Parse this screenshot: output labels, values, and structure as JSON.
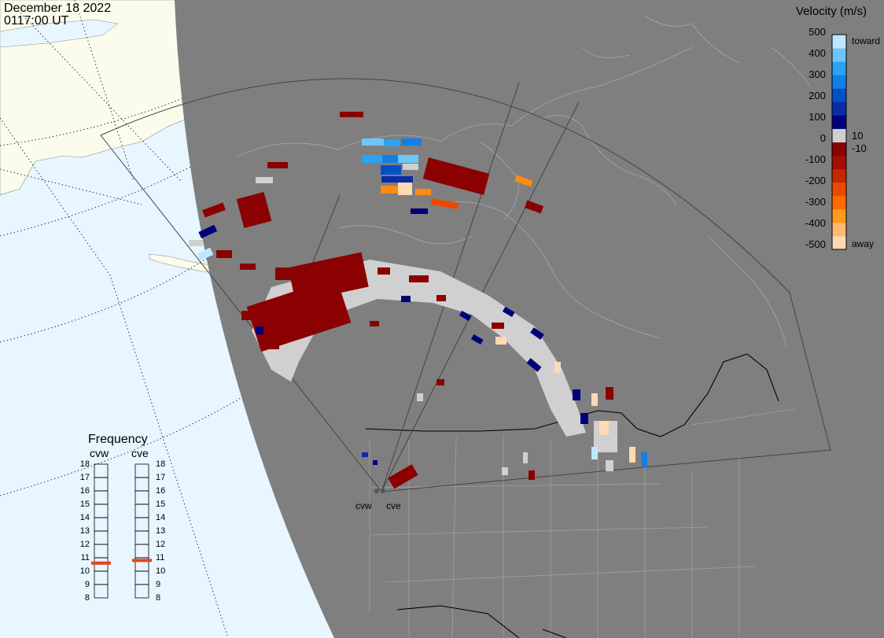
{
  "header": {
    "date": "December 18 2022",
    "time": "0117:00 UT"
  },
  "colorbar": {
    "title": "Velocity (m/s)",
    "ticks": [
      "500",
      "400",
      "300",
      "200",
      "100",
      "0",
      "-100",
      "-200",
      "-300",
      "-400",
      "-500"
    ],
    "inner_ticks": [
      "10",
      "-10"
    ],
    "toward_label": "toward",
    "away_label": "away",
    "colors": [
      "#ffd9b3",
      "#ffb870",
      "#ff9a1f",
      "#ff6a00",
      "#e84a00",
      "#c42800",
      "#a30f00",
      "#8b0000",
      "#d0d0d0",
      "#00007a",
      "#0a2aa8",
      "#0050c8",
      "#1080e6",
      "#2aa3f5",
      "#6cc6fa",
      "#bfe6ff"
    ]
  },
  "frequency": {
    "title": "Frequency",
    "radars": [
      "cvw",
      "cve"
    ],
    "scale": [
      "18",
      "17",
      "16",
      "15",
      "14",
      "13",
      "12",
      "11",
      "10",
      "9",
      "8"
    ],
    "scale_range": [
      8,
      18
    ],
    "current_mhz": [
      10.6,
      10.8
    ],
    "indicator_color": "#e8401c"
  },
  "sites": [
    {
      "code": "cvw"
    },
    {
      "code": "cve"
    }
  ],
  "colors": {
    "ocean": "#e8f6ff",
    "land_day": "#fbfcec",
    "night": "#7f7f7f",
    "gray_scatter": "#d0d0d0"
  }
}
